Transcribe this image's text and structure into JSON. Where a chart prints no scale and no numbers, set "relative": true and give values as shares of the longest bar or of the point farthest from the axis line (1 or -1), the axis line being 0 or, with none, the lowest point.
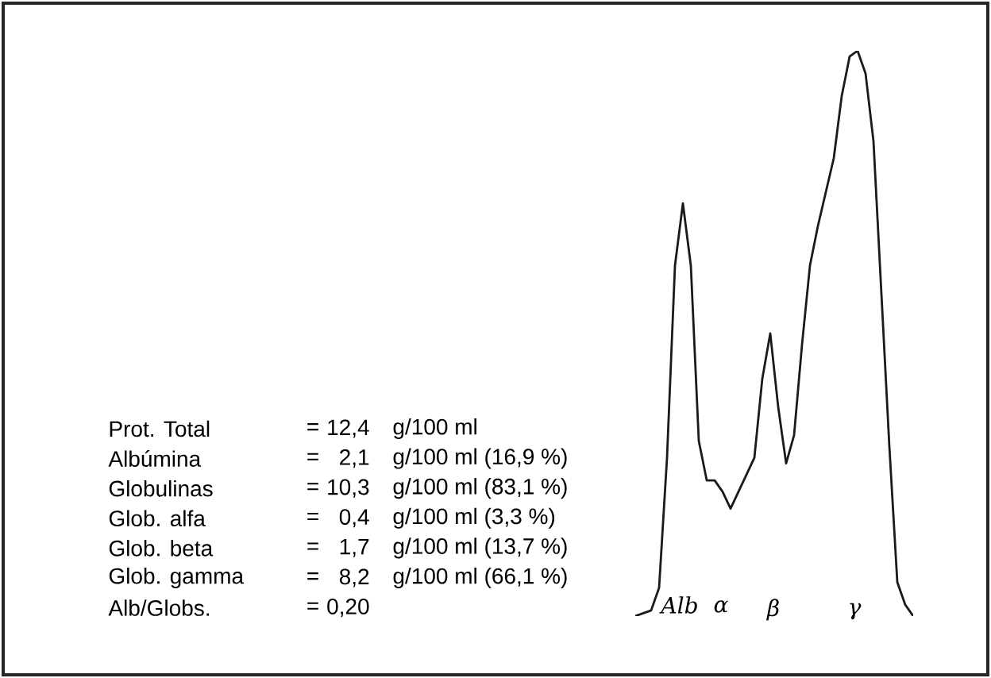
{
  "chart_data": {
    "type": "line",
    "relative": true,
    "categories": [
      null,
      null,
      null,
      null,
      null,
      null,
      null,
      null,
      null,
      null,
      null,
      null,
      null,
      null,
      null,
      null,
      null,
      null,
      null,
      null,
      null,
      null,
      null,
      null,
      null,
      null,
      null,
      null,
      null,
      null,
      null,
      null,
      null,
      null,
      null,
      null
    ],
    "series": [
      {
        "color": "#1a1a1a",
        "values": [
          0,
          0.005,
          0.01,
          0.05,
          0.28,
          0.62,
          0.73,
          0.62,
          0.31,
          0.24,
          0.24,
          0.22,
          0.19,
          0.22,
          0.25,
          0.28,
          0.42,
          0.5,
          0.37,
          0.27,
          0.32,
          0.48,
          0.62,
          0.69,
          0.75,
          0.81,
          0.92,
          0.99,
          1,
          0.96,
          0.84,
          0.57,
          0.3,
          0.06,
          0.02,
          0
        ]
      }
    ],
    "annotations": [
      "Prot. Total",
      "=",
      "12,4",
      "g/100 ml",
      "Albúmina",
      "=",
      "2,1",
      "g/100 ml (16,9 %)",
      "Globulinas",
      "=",
      "10,3",
      "g/100 ml (83,1 %)",
      "Glob. alfa",
      "=",
      "0,4",
      "g/100 ml (3,3 %)",
      "Glob. beta",
      "=",
      "1,7",
      "g/100 ml (13,7 %)",
      "Glob. gamma",
      "=",
      "8,2",
      "g/100 ml (66,1 %)",
      "Alb/Globs.",
      "=",
      "0,20",
      "Alb",
      "α",
      "β",
      "γ"
    ]
  }
}
